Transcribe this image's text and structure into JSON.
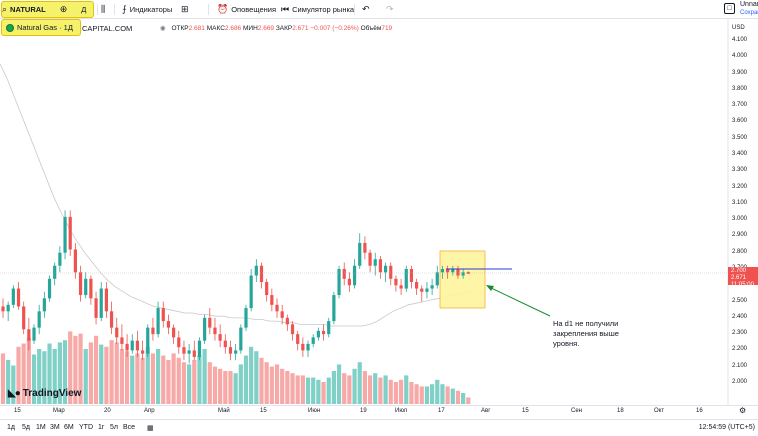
{
  "toolbar": {
    "symbol": "NATURAL",
    "add_icon": "plus-circle-icon",
    "interval": "Д",
    "compare_icon": "bar-style-icon",
    "indicators_label": "Индикаторы",
    "layouts_icon": "grid-icon",
    "alerts_label": "Оповещения",
    "replay_label": "Симулятор рынка",
    "undo_icon": "undo-icon",
    "redo_icon": "redo-icon",
    "layout_name": "Unnan",
    "save_label": "Сохран"
  },
  "legend": {
    "series_name": "Natural Gas · 1Д",
    "provider": "CAPITAL.COM",
    "open_label": "ОТКР",
    "open": "2.681",
    "high_label": "МАКС",
    "high": "2.686",
    "low_label": "МИН",
    "low": "2.669",
    "close_label": "ЗАКР",
    "close": "2.671",
    "change": "−0.007 (−0.26%)",
    "volume_label": "Объём",
    "volume": "719"
  },
  "price_scale": {
    "currency": "USD",
    "labels": [
      "4.100",
      "4.000",
      "3.900",
      "3.800",
      "3.700",
      "3.600",
      "3.500",
      "3.400",
      "3.300",
      "3.200",
      "3.100",
      "3.000",
      "2.900",
      "2.800",
      "2.700",
      "2.600",
      "2.500",
      "2.400",
      "2.300",
      "2.200",
      "2.100",
      "2.000"
    ],
    "current_price": "2.671",
    "current_extra": "2.700",
    "countdown": "11:05:00"
  },
  "time_axis": {
    "labels": [
      "15",
      "Мар",
      "20",
      "Апр",
      "Май",
      "15",
      "Июн",
      "19",
      "Июл",
      "17",
      "Авг",
      "15",
      "Сен",
      "18",
      "Окт",
      "16"
    ]
  },
  "bottom_bar": {
    "ranges": [
      "1д",
      "5д",
      "1М",
      "3М",
      "6М",
      "YTD",
      "1г",
      "5л",
      "Все"
    ],
    "calendar_icon": "calendar-range-icon",
    "clock": "12:54:59 (UTC+5)"
  },
  "logo_text": "TradingView",
  "annotation": "На d1 не получили закрепления выше уровня.",
  "colors": {
    "up": "#26a69a",
    "down": "#ef5350",
    "vol_up": "#7fd0c6",
    "vol_down": "#f7a9a7",
    "highlight": "#fff59d",
    "highlight_border": "#f5a623",
    "level_line": "#2a3bd6",
    "arrow": "#1b8a2f"
  },
  "chart_data": {
    "type": "candlestick",
    "ylim": [
      1.92,
      4.14
    ],
    "candles": [
      [
        2.47,
        2.52,
        2.4,
        2.44
      ],
      [
        2.44,
        2.5,
        2.38,
        2.48
      ],
      [
        2.48,
        2.6,
        2.46,
        2.58
      ],
      [
        2.58,
        2.62,
        2.45,
        2.47
      ],
      [
        2.47,
        2.5,
        2.3,
        2.33
      ],
      [
        2.33,
        2.4,
        2.2,
        2.26
      ],
      [
        2.26,
        2.36,
        2.24,
        2.34
      ],
      [
        2.34,
        2.48,
        2.3,
        2.44
      ],
      [
        2.44,
        2.56,
        2.4,
        2.52
      ],
      [
        2.52,
        2.66,
        2.5,
        2.64
      ],
      [
        2.64,
        2.74,
        2.6,
        2.72
      ],
      [
        2.72,
        2.84,
        2.68,
        2.8
      ],
      [
        2.8,
        3.06,
        2.76,
        3.02
      ],
      [
        3.02,
        3.06,
        2.78,
        2.82
      ],
      [
        2.82,
        2.86,
        2.64,
        2.68
      ],
      [
        2.68,
        2.72,
        2.5,
        2.54
      ],
      [
        2.54,
        2.68,
        2.52,
        2.64
      ],
      [
        2.64,
        2.66,
        2.48,
        2.52
      ],
      [
        2.52,
        2.56,
        2.36,
        2.4
      ],
      [
        2.4,
        2.62,
        2.38,
        2.58
      ],
      [
        2.58,
        2.62,
        2.4,
        2.44
      ],
      [
        2.44,
        2.5,
        2.3,
        2.34
      ],
      [
        2.34,
        2.4,
        2.24,
        2.28
      ],
      [
        2.28,
        2.36,
        2.2,
        2.24
      ],
      [
        2.24,
        2.3,
        2.16,
        2.2
      ],
      [
        2.2,
        2.3,
        2.18,
        2.26
      ],
      [
        2.26,
        2.32,
        2.16,
        2.2
      ],
      [
        2.2,
        2.26,
        2.14,
        2.18
      ],
      [
        2.18,
        2.36,
        2.16,
        2.34
      ],
      [
        2.34,
        2.4,
        2.26,
        2.3
      ],
      [
        2.3,
        2.5,
        2.28,
        2.46
      ],
      [
        2.46,
        2.5,
        2.34,
        2.38
      ],
      [
        2.38,
        2.42,
        2.3,
        2.34
      ],
      [
        2.34,
        2.36,
        2.24,
        2.28
      ],
      [
        2.28,
        2.32,
        2.18,
        2.22
      ],
      [
        2.22,
        2.26,
        2.14,
        2.18
      ],
      [
        2.18,
        2.24,
        2.12,
        2.2
      ],
      [
        2.2,
        2.26,
        2.14,
        2.16
      ],
      [
        2.16,
        2.28,
        2.14,
        2.26
      ],
      [
        2.26,
        2.42,
        2.24,
        2.4
      ],
      [
        2.4,
        2.46,
        2.3,
        2.34
      ],
      [
        2.34,
        2.4,
        2.26,
        2.3
      ],
      [
        2.3,
        2.36,
        2.22,
        2.26
      ],
      [
        2.26,
        2.3,
        2.18,
        2.22
      ],
      [
        2.22,
        2.26,
        2.14,
        2.18
      ],
      [
        2.18,
        2.24,
        2.14,
        2.2
      ],
      [
        2.2,
        2.36,
        2.18,
        2.34
      ],
      [
        2.34,
        2.48,
        2.32,
        2.46
      ],
      [
        2.46,
        2.7,
        2.44,
        2.66
      ],
      [
        2.66,
        2.76,
        2.62,
        2.72
      ],
      [
        2.72,
        2.74,
        2.58,
        2.62
      ],
      [
        2.62,
        2.64,
        2.5,
        2.54
      ],
      [
        2.54,
        2.58,
        2.44,
        2.48
      ],
      [
        2.48,
        2.52,
        2.4,
        2.44
      ],
      [
        2.44,
        2.48,
        2.36,
        2.4
      ],
      [
        2.4,
        2.42,
        2.32,
        2.36
      ],
      [
        2.36,
        2.38,
        2.26,
        2.3
      ],
      [
        2.3,
        2.32,
        2.2,
        2.24
      ],
      [
        2.24,
        2.28,
        2.16,
        2.2
      ],
      [
        2.2,
        2.26,
        2.16,
        2.24
      ],
      [
        2.24,
        2.3,
        2.22,
        2.28
      ],
      [
        2.28,
        2.34,
        2.26,
        2.32
      ],
      [
        2.32,
        2.36,
        2.26,
        2.3
      ],
      [
        2.3,
        2.4,
        2.28,
        2.38
      ],
      [
        2.38,
        2.56,
        2.36,
        2.54
      ],
      [
        2.54,
        2.72,
        2.52,
        2.7
      ],
      [
        2.7,
        2.74,
        2.6,
        2.64
      ],
      [
        2.64,
        2.68,
        2.56,
        2.6
      ],
      [
        2.6,
        2.76,
        2.58,
        2.72
      ],
      [
        2.72,
        2.92,
        2.7,
        2.86
      ],
      [
        2.86,
        2.9,
        2.76,
        2.8
      ],
      [
        2.8,
        2.82,
        2.68,
        2.72
      ],
      [
        2.72,
        2.8,
        2.66,
        2.76
      ],
      [
        2.76,
        2.78,
        2.64,
        2.68
      ],
      [
        2.68,
        2.74,
        2.62,
        2.72
      ],
      [
        2.72,
        2.74,
        2.6,
        2.64
      ],
      [
        2.64,
        2.66,
        2.56,
        2.6
      ],
      [
        2.6,
        2.64,
        2.54,
        2.58
      ],
      [
        2.58,
        2.72,
        2.56,
        2.7
      ],
      [
        2.7,
        2.72,
        2.58,
        2.62
      ],
      [
        2.62,
        2.64,
        2.54,
        2.58
      ],
      [
        2.58,
        2.6,
        2.5,
        2.56
      ],
      [
        2.56,
        2.62,
        2.52,
        2.58
      ],
      [
        2.58,
        2.64,
        2.54,
        2.6
      ],
      [
        2.6,
        2.72,
        2.58,
        2.68
      ],
      [
        2.68,
        2.72,
        2.64,
        2.7
      ],
      [
        2.7,
        2.72,
        2.64,
        2.68
      ],
      [
        2.68,
        2.72,
        2.66,
        2.7
      ],
      [
        2.7,
        2.72,
        2.64,
        2.66
      ],
      [
        2.66,
        2.7,
        2.64,
        2.68
      ],
      [
        2.681,
        2.686,
        2.669,
        2.671
      ]
    ],
    "volumes": [
      0.46,
      0.4,
      0.35,
      0.52,
      0.55,
      0.6,
      0.45,
      0.5,
      0.48,
      0.55,
      0.5,
      0.56,
      0.58,
      0.66,
      0.62,
      0.64,
      0.5,
      0.56,
      0.62,
      0.54,
      0.52,
      0.58,
      0.56,
      0.5,
      0.48,
      0.44,
      0.46,
      0.42,
      0.52,
      0.46,
      0.5,
      0.44,
      0.4,
      0.46,
      0.42,
      0.38,
      0.36,
      0.4,
      0.44,
      0.5,
      0.38,
      0.34,
      0.32,
      0.3,
      0.3,
      0.28,
      0.36,
      0.44,
      0.52,
      0.48,
      0.42,
      0.38,
      0.34,
      0.36,
      0.32,
      0.3,
      0.28,
      0.26,
      0.26,
      0.24,
      0.24,
      0.22,
      0.2,
      0.24,
      0.3,
      0.36,
      0.28,
      0.26,
      0.32,
      0.38,
      0.3,
      0.26,
      0.28,
      0.24,
      0.26,
      0.22,
      0.2,
      0.22,
      0.26,
      0.2,
      0.18,
      0.16,
      0.16,
      0.18,
      0.22,
      0.18,
      0.16,
      0.14,
      0.12,
      0.1,
      0.06
    ],
    "ma": [
      3.96,
      3.86,
      3.74,
      3.62,
      3.5,
      3.38,
      3.26,
      3.14,
      3.04,
      2.95,
      2.87,
      2.8,
      2.74,
      2.68,
      2.63,
      2.59,
      2.56,
      2.53,
      2.51,
      2.49,
      2.47,
      2.46,
      2.45,
      2.44,
      2.43,
      2.43,
      2.42,
      2.42,
      2.41,
      2.41,
      2.4,
      2.4,
      2.4,
      2.39,
      2.39,
      2.38,
      2.38,
      2.37,
      2.37,
      2.36,
      2.36,
      2.36,
      2.36,
      2.35,
      2.35,
      2.35,
      2.35,
      2.35,
      2.36,
      2.38,
      2.41,
      2.44,
      2.46,
      2.48,
      2.49,
      2.5,
      2.51,
      2.52,
      2.53,
      2.54,
      2.55,
      2.56
    ],
    "level": 2.7
  }
}
